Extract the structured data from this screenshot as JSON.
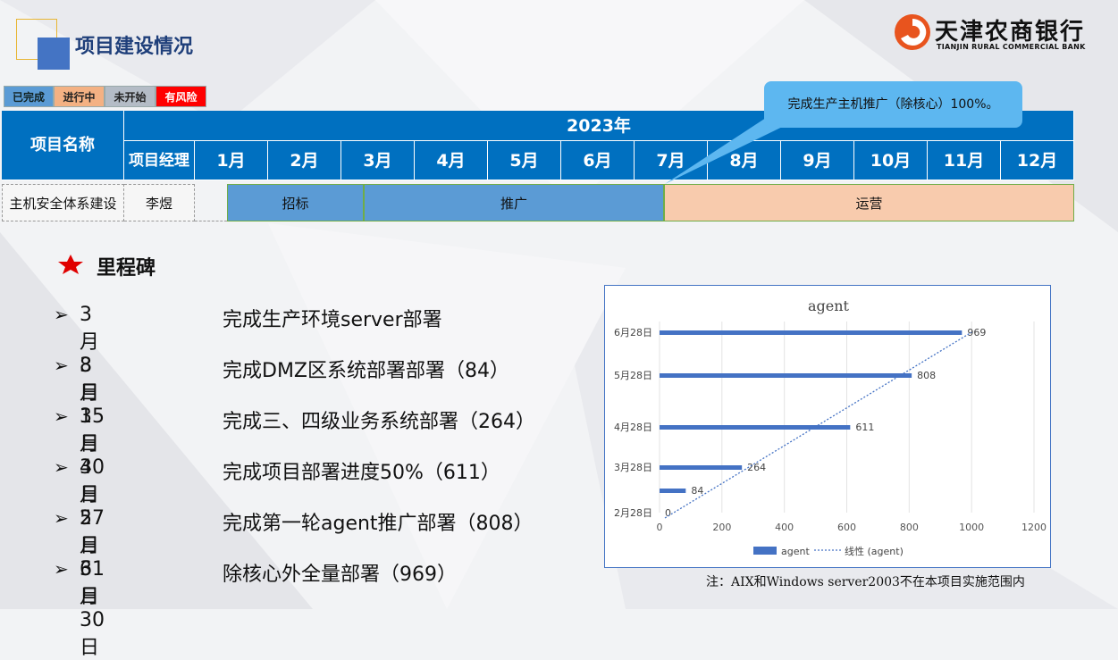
{
  "header": {
    "title": "项目建设情况",
    "logo_cn": "天津农商银行",
    "logo_en": "TIANJIN RURAL COMMERCIAL BANK"
  },
  "status_legend": [
    "已完成",
    "进行中",
    "未开始",
    "有风险"
  ],
  "table": {
    "col_name": "项目名称",
    "year": "2023年",
    "col_manager": "项目经理",
    "months": [
      "1月",
      "2月",
      "3月",
      "4月",
      "5月",
      "6月",
      "7月",
      "8月",
      "9月",
      "10月",
      "11月",
      "12月"
    ],
    "row": {
      "name": "主机安全体系建设",
      "manager": "李煜",
      "phases": [
        "招标",
        "推广",
        "运营"
      ]
    },
    "callout": "完成生产主机推广（除核心）100%。"
  },
  "milestones": {
    "title": "里程碑",
    "items": [
      {
        "date": "3月8日",
        "desc": "完成生产环境server部署"
      },
      {
        "date": "3月15日",
        "desc": "完成DMZ区系统部署部署（84）"
      },
      {
        "date": "3月30日",
        "desc": "完成三、四级业务系统部署（264）"
      },
      {
        "date": "4月27日",
        "desc": "完成项目部署进度50%（611）"
      },
      {
        "date": "5月31日",
        "desc": "完成第一轮agent推广部署（808）"
      },
      {
        "date": "6月30日",
        "desc": "除核心外全量部署（969）"
      }
    ]
  },
  "colors": {
    "done": "#5b9bd5",
    "in_progress": "#f4b183",
    "not_started": "#b4bcc6",
    "risk": "#ff0000",
    "table_header": "#0070c0",
    "bar_series": "#4472c4"
  },
  "chart_data": {
    "type": "bar",
    "orientation": "horizontal",
    "title": "agent",
    "categories": [
      "2月28日",
      "",
      "3月28日",
      "4月28日",
      "5月28日",
      "6月28日"
    ],
    "values": [
      0,
      84,
      264,
      611,
      808,
      969
    ],
    "series": [
      {
        "name": "agent",
        "values": [
          0,
          84,
          264,
          611,
          808,
          969
        ]
      }
    ],
    "trendline": {
      "name": "线性 (agent)",
      "type": "linear"
    },
    "xlim": [
      0,
      1200
    ],
    "xticks": [
      0,
      200,
      400,
      600,
      800,
      1000,
      1200
    ],
    "grid": true,
    "legend": "bottom"
  },
  "footnote": "注：AIX和Windows server2003不在本项目实施范围内"
}
